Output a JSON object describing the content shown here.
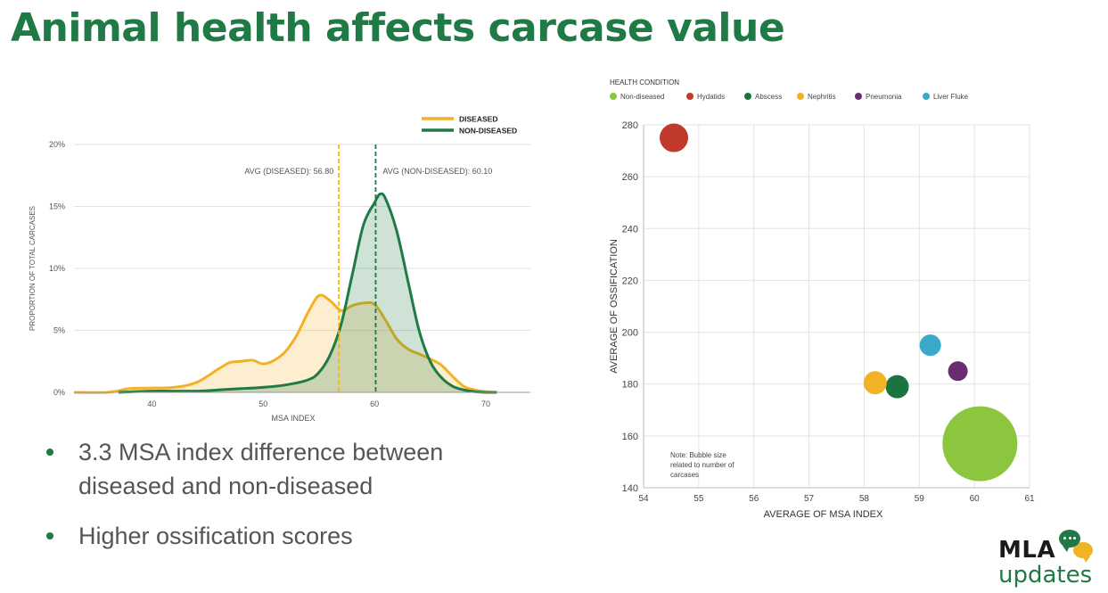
{
  "slide": {
    "title": "Animal health affects carcase value"
  },
  "bullets": [
    "3.3 MSA index difference between diseased and non-diseased",
    "Higher ossification scores"
  ],
  "logo": {
    "brand": "MLA",
    "sub": "updates"
  },
  "chart_data": [
    {
      "type": "area",
      "xlabel": "MSA INDEX",
      "ylabel": "PROPORTION OF TOTAL CARCASES",
      "xlim": [
        33,
        74
      ],
      "ylim": [
        0,
        20
      ],
      "x_ticks": [
        "40",
        "50",
        "60",
        "70"
      ],
      "y_ticks": [
        "0%",
        "5%",
        "10%",
        "15%",
        "20%"
      ],
      "grid": "horizontal",
      "legend": "top-right",
      "series": [
        {
          "name": "DISEASED",
          "color": "#f0b323",
          "x": [
            33,
            36,
            38,
            40,
            42,
            44,
            46,
            47,
            48,
            49,
            50,
            51,
            52,
            53,
            54,
            55,
            56,
            57,
            58,
            59,
            60,
            61,
            62,
            63,
            64,
            65,
            66,
            67,
            68,
            69,
            70,
            71
          ],
          "y": [
            0,
            0,
            0.3,
            0.35,
            0.4,
            0.8,
            1.9,
            2.4,
            2.5,
            2.6,
            2.3,
            2.6,
            3.3,
            4.6,
            6.4,
            7.8,
            7.4,
            6.6,
            7.0,
            7.2,
            7.1,
            5.8,
            4.3,
            3.5,
            3.1,
            2.7,
            2.2,
            1.3,
            0.5,
            0.2,
            0.05,
            0
          ]
        },
        {
          "name": "NON-DISEASED",
          "color": "#1f7a45",
          "x": [
            37,
            40,
            44,
            46,
            48,
            50,
            52,
            54,
            55,
            56,
            57,
            58,
            59,
            60,
            60.5,
            61,
            62,
            63,
            64,
            65,
            66,
            67,
            68,
            69,
            70,
            71
          ],
          "y": [
            0,
            0.1,
            0.1,
            0.2,
            0.3,
            0.4,
            0.6,
            1.0,
            1.6,
            3.0,
            5.5,
            9.5,
            13.5,
            15.3,
            16.0,
            15.6,
            13.0,
            9.0,
            5.0,
            2.5,
            1.2,
            0.5,
            0.2,
            0.05,
            0,
            0
          ]
        }
      ],
      "averages": [
        {
          "label": "AVG (DISEASED): 56.80",
          "x": 56.8,
          "color": "#f0b323"
        },
        {
          "label": "AVG (NON-DISEASED): 60.10",
          "x": 60.1,
          "color": "#1f7a45"
        }
      ]
    },
    {
      "type": "scatter",
      "xlabel": "AVERAGE OF MSA INDEX",
      "ylabel": "AVERAGE OF OSSIFICATION",
      "xlim": [
        54,
        61
      ],
      "ylim": [
        140,
        280
      ],
      "x_ticks": [
        "54",
        "55",
        "56",
        "57",
        "58",
        "59",
        "60",
        "61"
      ],
      "y_ticks": [
        "140",
        "160",
        "180",
        "200",
        "220",
        "240",
        "260",
        "280"
      ],
      "grid": "both",
      "legend_title": "HEALTH CONDITION",
      "legend": "top",
      "note": [
        "Note: Bubble size",
        "related to number of",
        "carcases"
      ],
      "points": [
        {
          "name": "Non-diseased",
          "x": 60.1,
          "y": 157,
          "r": 42,
          "color": "#8cc63f"
        },
        {
          "name": "Hydatids",
          "x": 54.55,
          "y": 275,
          "r": 16,
          "color": "#c0392b"
        },
        {
          "name": "Abscess",
          "x": 58.6,
          "y": 179,
          "r": 13,
          "color": "#1b7340"
        },
        {
          "name": "Nephritis",
          "x": 58.2,
          "y": 180.5,
          "r": 13,
          "color": "#f0b323"
        },
        {
          "name": "Pneumonia",
          "x": 59.7,
          "y": 185,
          "r": 11,
          "color": "#6a2c70"
        },
        {
          "name": "Liver Fluke",
          "x": 59.2,
          "y": 195,
          "r": 12,
          "color": "#3aa8c8"
        }
      ]
    }
  ]
}
